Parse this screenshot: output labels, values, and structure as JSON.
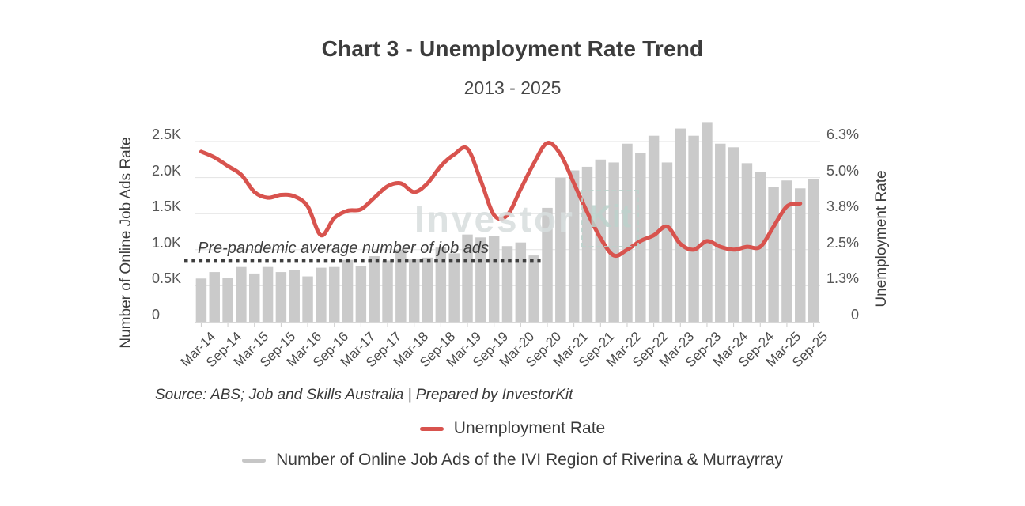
{
  "header": {
    "title": "Chart 3 - Unemployment Rate Trend",
    "subtitle": "2013 - 2025"
  },
  "chart_data": {
    "type": "bar+line",
    "categories": [
      "Mar-14",
      "Jun-14",
      "Sep-14",
      "Dec-14",
      "Mar-15",
      "Jun-15",
      "Sep-15",
      "Dec-15",
      "Mar-16",
      "Jun-16",
      "Sep-16",
      "Dec-16",
      "Mar-17",
      "Jun-17",
      "Sep-17",
      "Dec-17",
      "Mar-18",
      "Jun-18",
      "Sep-18",
      "Dec-18",
      "Mar-19",
      "Jun-19",
      "Sep-19",
      "Dec-19",
      "Mar-20",
      "Jun-20",
      "Sep-20",
      "Dec-20",
      "Mar-21",
      "Jun-21",
      "Sep-21",
      "Dec-21",
      "Mar-22",
      "Jun-22",
      "Sep-22",
      "Dec-22",
      "Mar-23",
      "Jun-23",
      "Sep-23",
      "Dec-23",
      "Mar-24",
      "Jun-24",
      "Sep-24",
      "Dec-24",
      "Mar-25",
      "Jun-25",
      "Sep-25"
    ],
    "x_tick_labels": [
      "Mar-14",
      "Sep-14",
      "Mar-15",
      "Sep-15",
      "Mar-16",
      "Sep-16",
      "Mar-17",
      "Sep-17",
      "Mar-18",
      "Sep-18",
      "Mar-19",
      "Sep-19",
      "Mar-20",
      "Sep-20",
      "Mar-21",
      "Sep-21",
      "Mar-22",
      "Sep-22",
      "Mar-23",
      "Sep-23",
      "Mar-24",
      "Sep-24",
      "Mar-25",
      "Sep-25"
    ],
    "series": [
      {
        "name": "Number of Online Job Ads of the IVI Region of Riverina & Murrayrray",
        "type": "bar",
        "axis": "left",
        "unit": "K",
        "color": "#cacaca",
        "values": [
          0.6,
          0.69,
          0.61,
          0.76,
          0.67,
          0.76,
          0.69,
          0.72,
          0.63,
          0.75,
          0.76,
          0.86,
          0.77,
          0.91,
          0.85,
          1.0,
          0.87,
          0.89,
          1.03,
          0.95,
          1.21,
          1.17,
          1.19,
          1.05,
          1.1,
          0.92,
          1.58,
          2.0,
          2.1,
          2.15,
          2.25,
          2.21,
          2.47,
          2.34,
          2.58,
          2.21,
          2.68,
          2.58,
          2.77,
          2.47,
          2.42,
          2.2,
          2.08,
          1.87,
          1.96,
          1.85,
          1.98
        ]
      },
      {
        "name": "Unemployment Rate",
        "type": "line",
        "axis": "right",
        "unit": "%",
        "color": "#d8534e",
        "values": [
          5.9,
          5.7,
          5.4,
          5.1,
          4.5,
          4.3,
          4.4,
          4.35,
          4.0,
          3.0,
          3.6,
          3.85,
          3.9,
          4.3,
          4.7,
          4.8,
          4.5,
          4.8,
          5.4,
          5.8,
          6.0,
          4.9,
          3.7,
          3.7,
          4.6,
          5.5,
          6.2,
          5.8,
          4.8,
          3.8,
          2.9,
          2.3,
          2.5,
          2.8,
          3.0,
          3.3,
          2.7,
          2.5,
          2.8,
          2.6,
          2.5,
          2.6,
          2.6,
          3.3,
          4.0,
          4.1,
          null
        ]
      }
    ],
    "left_axis": {
      "title": "Number of Online Job Ads Rate",
      "ticks": [
        "0",
        "0.5K",
        "1.0K",
        "1.5K",
        "2.0K",
        "2.5K"
      ],
      "max": 2.5
    },
    "right_axis": {
      "title": "Unemployment Rate",
      "ticks": [
        "0",
        "1.3%",
        "2.5%",
        "3.8%",
        "5.0%",
        "6.3%"
      ],
      "max": 6.25
    },
    "annotation": {
      "label": "Pre-pandemic average number of job ads",
      "value_k": 0.845,
      "color": "#3f3f3f",
      "span_bars": 26
    },
    "watermark": {
      "part1": "Investor",
      "part2": "Kit"
    },
    "grid": {
      "color": "#e3e3e3",
      "baseline_color": "#d8d8d8"
    }
  },
  "footer": {
    "source": "Source: ABS; Job and Skills Australia | Prepared by InvestorKit",
    "legend": [
      {
        "label": "Unemployment Rate",
        "color": "#d8534e"
      },
      {
        "label": "Number of Online Job Ads of the IVI Region of Riverina & Murrayrray",
        "color": "#c6c6c6"
      }
    ]
  }
}
